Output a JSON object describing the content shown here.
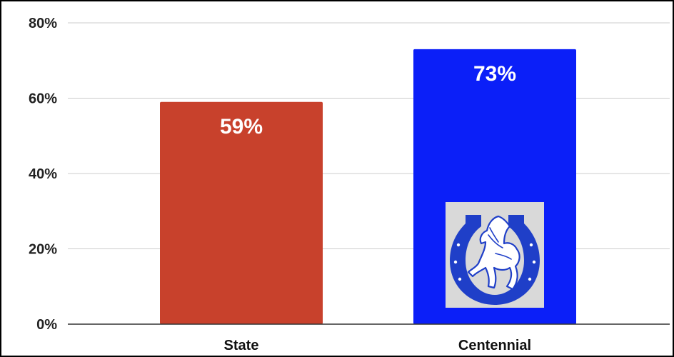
{
  "chart_data": {
    "type": "bar",
    "categories": [
      "State",
      "Centennial"
    ],
    "values": [
      59,
      73
    ],
    "data_labels": [
      "59%",
      "73%"
    ],
    "colors": [
      "#c8412c",
      "#0b1ff8"
    ],
    "ylim": [
      0,
      80
    ],
    "yticks": [
      0,
      20,
      40,
      60,
      80
    ],
    "ytick_labels": [
      "0%",
      "20%",
      "40%",
      "60%",
      "80%"
    ],
    "grid": true,
    "title": "",
    "xlabel": "",
    "ylabel": ""
  },
  "logo": {
    "icon": "horseshoe-bronco-logo-icon",
    "on_category": "Centennial",
    "background": "#d9d9d9",
    "color": "#1f3fc8"
  }
}
